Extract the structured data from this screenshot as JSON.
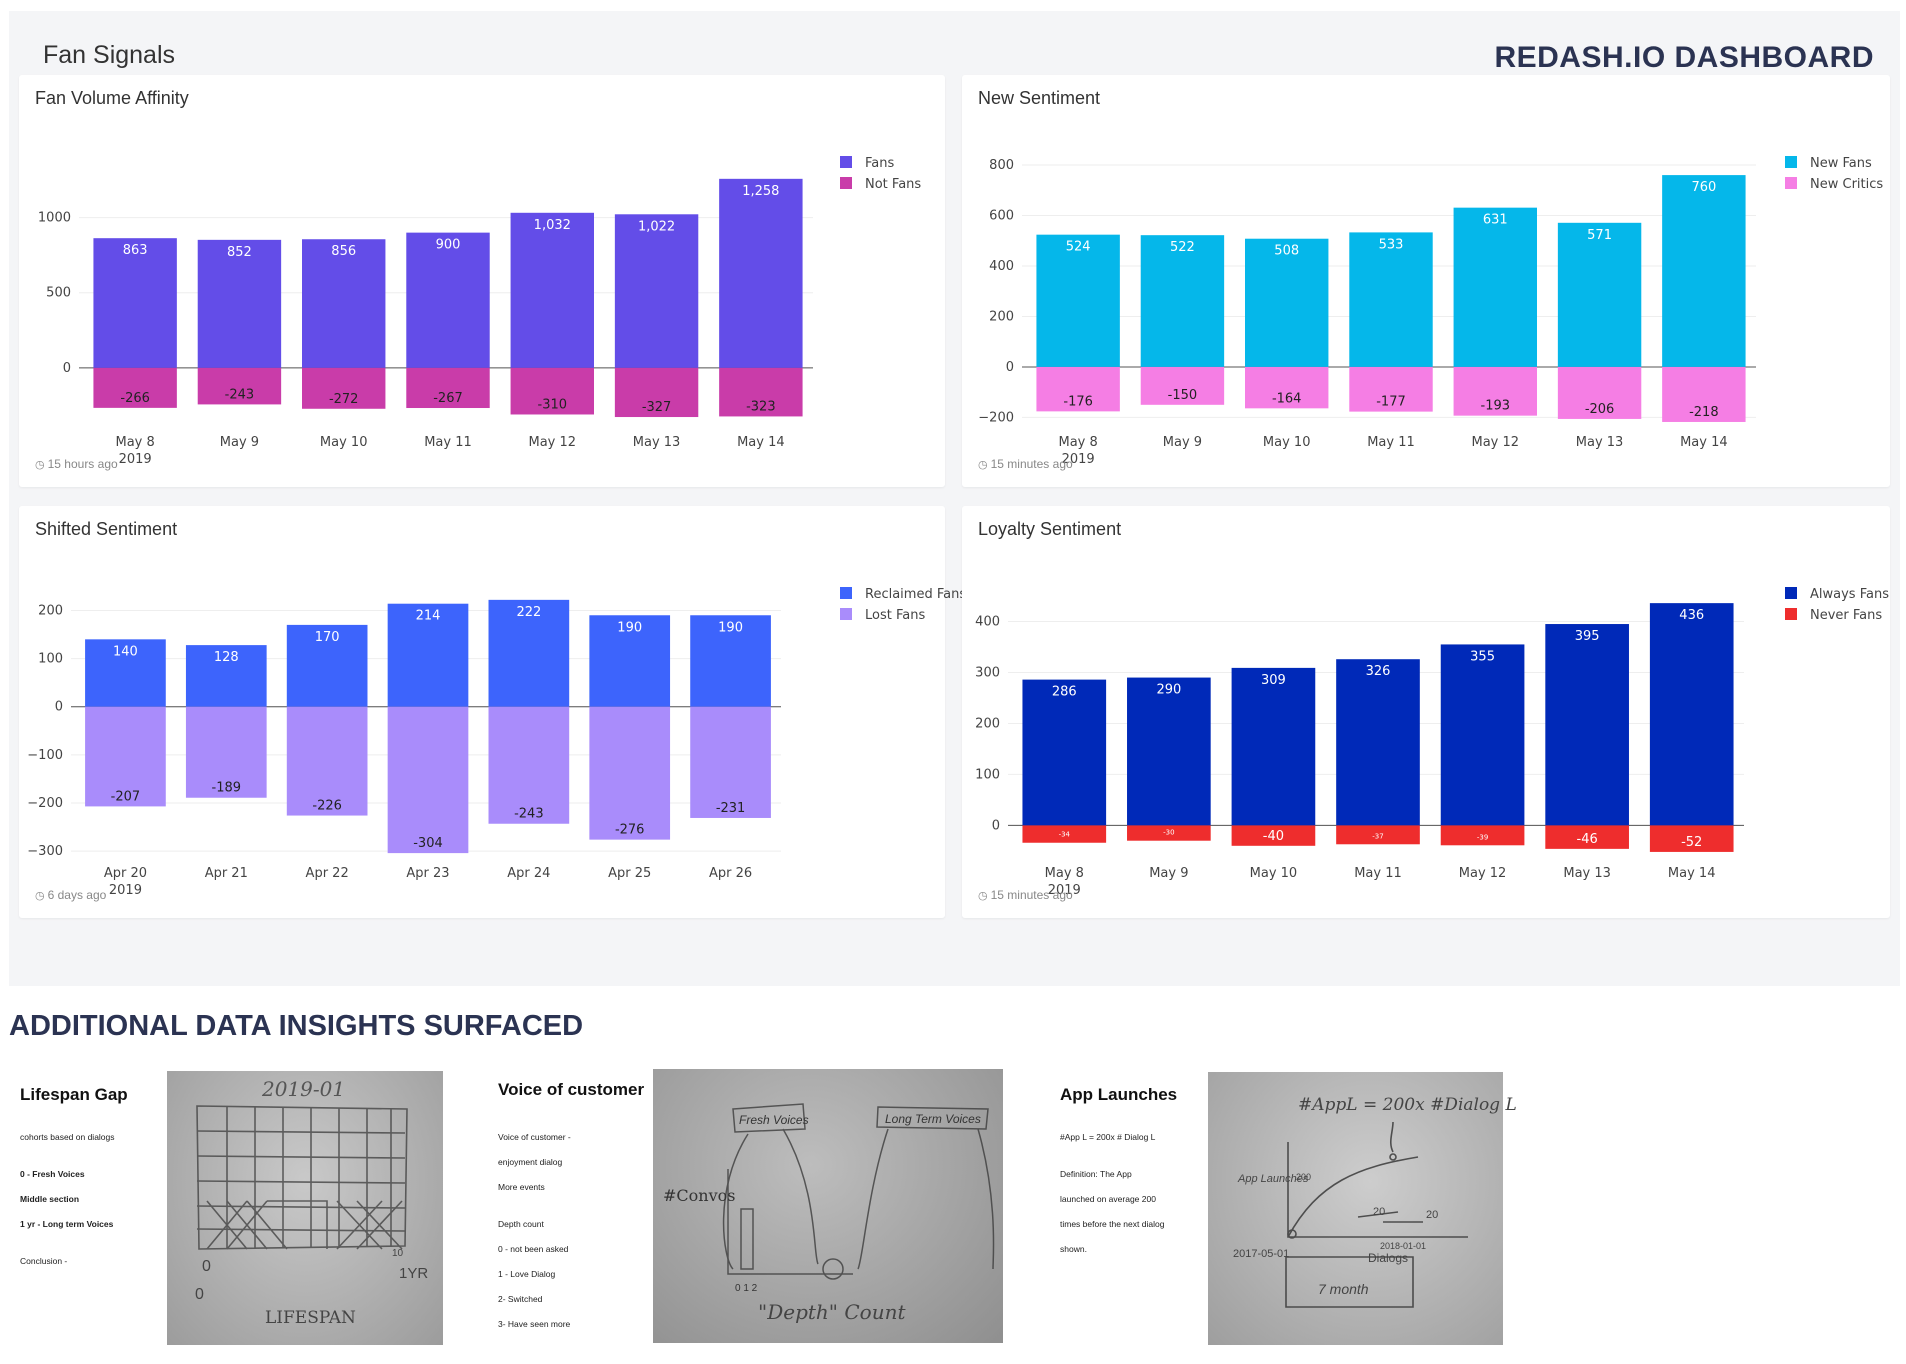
{
  "dashboard": {
    "title": "Fan Signals",
    "brand": "REDASH.IO DASHBOARD"
  },
  "widgets": [
    {
      "title": "Fan Volume Affinity",
      "footer": "15 hours ago",
      "chart_data": {
        "type": "bar",
        "stacked": true,
        "categories": [
          "May 8",
          "May 9",
          "May 10",
          "May 11",
          "May 12",
          "May 13",
          "May 14"
        ],
        "first_category_year": "2019",
        "series": [
          {
            "name": "Fans",
            "color": "#634de8",
            "values": [
              863,
              852,
              856,
              900,
              1032,
              1022,
              1258
            ],
            "labels": [
              "863",
              "852",
              "856",
              "900",
              "1,032",
              "1,022",
              "1,258"
            ]
          },
          {
            "name": "Not Fans",
            "color": "#c93ca9",
            "values": [
              -266,
              -243,
              -272,
              -267,
              -310,
              -327,
              -323
            ],
            "labels": [
              "-266",
              "-243",
              "-272",
              "-267",
              "-310",
              "-327",
              "-323"
            ]
          }
        ],
        "yticks": [
          0,
          500,
          1000
        ],
        "yticklabels": [
          "0",
          "500",
          "1000"
        ],
        "ylim": [
          -380,
          1350
        ],
        "legend": "top-right",
        "grid": true
      }
    },
    {
      "title": "New Sentiment",
      "footer": "15 minutes ago",
      "chart_data": {
        "type": "bar",
        "stacked": true,
        "categories": [
          "May 8",
          "May 9",
          "May 10",
          "May 11",
          "May 12",
          "May 13",
          "May 14"
        ],
        "first_category_year": "2019",
        "series": [
          {
            "name": "New Fans",
            "color": "#05b7ea",
            "values": [
              524,
              522,
              508,
              533,
              631,
              571,
              760
            ],
            "labels": [
              "524",
              "522",
              "508",
              "533",
              "631",
              "571",
              "760"
            ]
          },
          {
            "name": "New Critics",
            "color": "#f57ee4",
            "values": [
              -176,
              -150,
              -164,
              -177,
              -193,
              -206,
              -218
            ],
            "labels": [
              "-176",
              "-150",
              "-164",
              "-177",
              "-193",
              "-206",
              "-218"
            ]
          }
        ],
        "yticks": [
          -200,
          0,
          200,
          400,
          600,
          800
        ],
        "yticklabels": [
          "−200",
          "0",
          "200",
          "400",
          "600",
          "800"
        ],
        "ylim": [
          -230,
          800
        ],
        "legend": "top-right",
        "grid": true
      }
    },
    {
      "title": "Shifted Sentiment",
      "footer": "6 days ago",
      "chart_data": {
        "type": "bar",
        "stacked": true,
        "categories": [
          "Apr 20",
          "Apr 21",
          "Apr 22",
          "Apr 23",
          "Apr 24",
          "Apr 25",
          "Apr 26"
        ],
        "first_category_year": "2019",
        "series": [
          {
            "name": "Reclaimed Fans",
            "color": "#3d64fc",
            "values": [
              140,
              128,
              170,
              214,
              222,
              190,
              190
            ],
            "labels": [
              "140",
              "128",
              "170",
              "214",
              "222",
              "190",
              "190"
            ]
          },
          {
            "name": "Lost Fans",
            "color": "#a98cfb",
            "values": [
              -207,
              -189,
              -226,
              -304,
              -243,
              -276,
              -231
            ],
            "labels": [
              "-207",
              "-189",
              "-226",
              "-304",
              "-243",
              "-276",
              "-231"
            ]
          }
        ],
        "yticks": [
          -300,
          -200,
          -100,
          0,
          100,
          200
        ],
        "yticklabels": [
          "−300",
          "−200",
          "−100",
          "0",
          "100",
          "200"
        ],
        "ylim": [
          -310,
          230
        ],
        "legend": "top-right",
        "grid": true
      }
    },
    {
      "title": "Loyalty Sentiment",
      "footer": "15 minutes ago",
      "chart_data": {
        "type": "bar",
        "stacked": true,
        "categories": [
          "May 8",
          "May 9",
          "May 10",
          "May 11",
          "May 12",
          "May 13",
          "May 14"
        ],
        "first_category_year": "2019",
        "series": [
          {
            "name": "Always Fans",
            "color": "#0029b8",
            "values": [
              286,
              290,
              309,
              326,
              355,
              395,
              436
            ],
            "labels": [
              "286",
              "290",
              "309",
              "326",
              "355",
              "395",
              "436"
            ]
          },
          {
            "name": "Never Fans",
            "color": "#ee2d2d",
            "values": [
              -34,
              -30,
              -40,
              -37,
              -39,
              -46,
              -52
            ],
            "labels": [
              "-34",
              "-30",
              "-40",
              "-37",
              "-39",
              "-46",
              "-52"
            ]
          }
        ],
        "yticks": [
          0,
          100,
          200,
          300,
          400
        ],
        "yticklabels": [
          "0",
          "100",
          "200",
          "300",
          "400"
        ],
        "ylim": [
          -60,
          450
        ],
        "legend": "top-right",
        "grid": true
      }
    }
  ],
  "insights": {
    "heading": "ADDITIONAL DATA INSIGHTS SURFACED",
    "cards": [
      {
        "title": "Lifespan Gap",
        "subtitle": "cohorts based on dialogs",
        "bold_lines": [
          "0 - Fresh Voices",
          "Middle section",
          "1 yr - Long term Voices"
        ],
        "lines": [
          "Conclusion -"
        ],
        "photo_text": [
          "2019-01",
          "0",
          "1YR",
          "LIFESPAN",
          "10"
        ]
      },
      {
        "title": "Voice of customer",
        "lines": [
          "Voice of customer -",
          "enjoyment dialog",
          "More events",
          "",
          "Depth count",
          "0 - not been asked",
          "1 - Love Dialog",
          "2-  Switched",
          "3- Have seen more"
        ],
        "photo_text": [
          "Fresh Voices",
          "Long Term Voices",
          "#Convos",
          "\"Depth\" Count",
          "0 1 2"
        ]
      },
      {
        "title": "App Launches",
        "lines": [
          "#App L  = 200x  # Dialog L",
          "",
          "Definition: The App",
          "launched on average 200",
          "times before the next dialog",
          "shown."
        ],
        "photo_text": [
          "#AppL = 200x #Dialog L",
          "App Launches",
          "2017-05-01",
          "Dialogs",
          "2018-01-01",
          "7 month",
          "20",
          "200"
        ]
      }
    ]
  }
}
